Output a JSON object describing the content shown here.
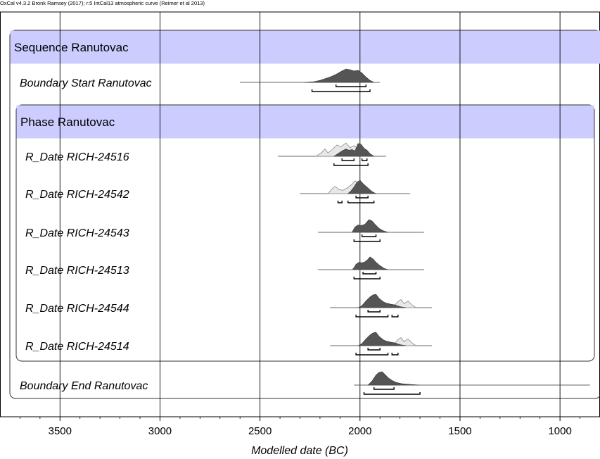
{
  "header": "OxCal v4.3.2 Bronk Ramsey (2017); r:5 IntCal13 atmospheric curve (Reimer et al 2013)",
  "chart_data": {
    "type": "area",
    "title": "",
    "xlabel": "Modelled date (BC)",
    "ylabel": "",
    "xlim": [
      3800,
      800
    ],
    "x_reversed": true,
    "xticks": [
      3500,
      3000,
      2500,
      2000,
      1500,
      1000
    ],
    "grid": true,
    "sequence": {
      "label": "Sequence Ranutovac"
    },
    "phase": {
      "label": "Phase Ranutovac"
    },
    "rows": [
      {
        "label": "Boundary Start Ranutovac",
        "group": "sequence",
        "posterior": [
          [
            2280,
            0
          ],
          [
            2230,
            0.05
          ],
          [
            2200,
            0.15
          ],
          [
            2150,
            0.4
          ],
          [
            2120,
            0.6
          ],
          [
            2090,
            0.85
          ],
          [
            2070,
            1
          ],
          [
            2050,
            0.95
          ],
          [
            2030,
            0.85
          ],
          [
            2010,
            0.9
          ],
          [
            1990,
            0.7
          ],
          [
            1970,
            0.4
          ],
          [
            1950,
            0.15
          ],
          [
            1930,
            0
          ]
        ],
        "tail": [
          2600,
          1900
        ],
        "range_68": [
          [
            2120,
            1970
          ]
        ],
        "range_95": [
          [
            2240,
            1950
          ]
        ]
      },
      {
        "label": "R_Date RICH-24516",
        "group": "phase",
        "prior": [
          [
            2220,
            0
          ],
          [
            2190,
            0.3
          ],
          [
            2175,
            0.55
          ],
          [
            2160,
            0.25
          ],
          [
            2140,
            0.5
          ],
          [
            2115,
            0.85
          ],
          [
            2095,
            0.7
          ],
          [
            2070,
            1
          ],
          [
            2050,
            0.65
          ],
          [
            2030,
            0.8
          ],
          [
            2010,
            0.55
          ],
          [
            1995,
            0.8
          ],
          [
            1980,
            0.45
          ],
          [
            1960,
            0.3
          ],
          [
            1940,
            0
          ]
        ],
        "posterior": [
          [
            2130,
            0
          ],
          [
            2110,
            0.2
          ],
          [
            2090,
            0.4
          ],
          [
            2070,
            0.55
          ],
          [
            2055,
            0.45
          ],
          [
            2040,
            0.5
          ],
          [
            2025,
            0.4
          ],
          [
            2010,
            0.95
          ],
          [
            1995,
            0.9
          ],
          [
            1980,
            0.6
          ],
          [
            1965,
            0.45
          ],
          [
            1950,
            0.2
          ],
          [
            1930,
            0
          ]
        ],
        "tail": [
          2410,
          1870
        ],
        "range_68": [
          [
            2090,
            2030
          ],
          [
            1990,
            1965
          ]
        ],
        "range_95": [
          [
            2130,
            1960
          ]
        ]
      },
      {
        "label": "R_Date RICH-24542",
        "group": "phase",
        "prior": [
          [
            2160,
            0
          ],
          [
            2140,
            0.35
          ],
          [
            2125,
            0.55
          ],
          [
            2105,
            0.3
          ],
          [
            2085,
            0.25
          ],
          [
            2060,
            0.45
          ],
          [
            2040,
            0.7
          ],
          [
            2025,
            0.95
          ],
          [
            2005,
            0.8
          ],
          [
            1985,
            0.55
          ],
          [
            1965,
            0.4
          ],
          [
            1945,
            0.2
          ],
          [
            1925,
            0
          ]
        ],
        "posterior": [
          [
            2060,
            0
          ],
          [
            2045,
            0.2
          ],
          [
            2030,
            0.5
          ],
          [
            2015,
            0.85
          ],
          [
            2000,
            1
          ],
          [
            1985,
            0.75
          ],
          [
            1970,
            0.55
          ],
          [
            1955,
            0.35
          ],
          [
            1940,
            0.15
          ],
          [
            1920,
            0
          ]
        ],
        "tail": [
          2300,
          1750
        ],
        "range_68": [
          [
            2020,
            1960
          ]
        ],
        "range_95": [
          [
            2110,
            2090
          ],
          [
            2060,
            1930
          ]
        ]
      },
      {
        "label": "R_Date RICH-24543",
        "group": "phase",
        "prior": [
          [
            2040,
            0
          ],
          [
            2020,
            0.3
          ],
          [
            2000,
            0.5
          ],
          [
            1980,
            0.55
          ],
          [
            1960,
            0.75
          ],
          [
            1945,
            0.85
          ],
          [
            1930,
            0.6
          ],
          [
            1915,
            0.35
          ],
          [
            1895,
            0.15
          ],
          [
            1870,
            0
          ]
        ],
        "posterior": [
          [
            2040,
            0
          ],
          [
            2025,
            0.4
          ],
          [
            2010,
            0.55
          ],
          [
            1995,
            0.5
          ],
          [
            1975,
            0.6
          ],
          [
            1955,
            0.95
          ],
          [
            1940,
            0.85
          ],
          [
            1925,
            0.6
          ],
          [
            1905,
            0.3
          ],
          [
            1885,
            0.12
          ],
          [
            1860,
            0
          ]
        ],
        "tail": [
          2210,
          1680
        ],
        "range_68": [
          [
            1990,
            1920
          ]
        ],
        "range_95": [
          [
            2030,
            1900
          ]
        ]
      },
      {
        "label": "R_Date RICH-24513",
        "group": "phase",
        "prior": [
          [
            2040,
            0
          ],
          [
            2020,
            0.3
          ],
          [
            2000,
            0.5
          ],
          [
            1980,
            0.55
          ],
          [
            1960,
            0.75
          ],
          [
            1945,
            0.85
          ],
          [
            1930,
            0.6
          ],
          [
            1915,
            0.35
          ],
          [
            1895,
            0.15
          ],
          [
            1870,
            0
          ]
        ],
        "posterior": [
          [
            2035,
            0
          ],
          [
            2020,
            0.4
          ],
          [
            2005,
            0.55
          ],
          [
            1990,
            0.5
          ],
          [
            1970,
            0.6
          ],
          [
            1950,
            0.95
          ],
          [
            1935,
            0.8
          ],
          [
            1920,
            0.55
          ],
          [
            1900,
            0.3
          ],
          [
            1880,
            0.1
          ],
          [
            1860,
            0
          ]
        ],
        "tail": [
          2210,
          1680
        ],
        "range_68": [
          [
            1985,
            1920
          ]
        ],
        "range_95": [
          [
            2030,
            1900
          ]
        ]
      },
      {
        "label": "R_Date RICH-24544",
        "group": "phase",
        "prior": [
          [
            1990,
            0
          ],
          [
            1965,
            0.3
          ],
          [
            1945,
            0.5
          ],
          [
            1925,
            0.55
          ],
          [
            1905,
            0.45
          ],
          [
            1885,
            0.3
          ],
          [
            1865,
            0.35
          ],
          [
            1845,
            0.25
          ],
          [
            1825,
            0.2
          ],
          [
            1810,
            0.45
          ],
          [
            1795,
            0.6
          ],
          [
            1780,
            0.3
          ],
          [
            1760,
            0.5
          ],
          [
            1740,
            0.2
          ],
          [
            1720,
            0
          ]
        ],
        "posterior": [
          [
            2010,
            0
          ],
          [
            1990,
            0.15
          ],
          [
            1970,
            0.5
          ],
          [
            1950,
            0.8
          ],
          [
            1935,
            0.95
          ],
          [
            1920,
            1
          ],
          [
            1905,
            0.7
          ],
          [
            1885,
            0.45
          ],
          [
            1865,
            0.3
          ],
          [
            1845,
            0.25
          ],
          [
            1825,
            0.2
          ],
          [
            1800,
            0.08
          ],
          [
            1770,
            0
          ]
        ],
        "tail": [
          2150,
          1640
        ],
        "range_68": [
          [
            1960,
            1900
          ]
        ],
        "range_95": [
          [
            2020,
            1860
          ],
          [
            1840,
            1810
          ]
        ]
      },
      {
        "label": "R_Date RICH-24514",
        "group": "phase",
        "prior": [
          [
            1990,
            0
          ],
          [
            1965,
            0.3
          ],
          [
            1945,
            0.5
          ],
          [
            1925,
            0.55
          ],
          [
            1905,
            0.45
          ],
          [
            1885,
            0.3
          ],
          [
            1865,
            0.35
          ],
          [
            1845,
            0.25
          ],
          [
            1825,
            0.2
          ],
          [
            1810,
            0.45
          ],
          [
            1795,
            0.6
          ],
          [
            1780,
            0.3
          ],
          [
            1760,
            0.5
          ],
          [
            1740,
            0.2
          ],
          [
            1720,
            0
          ]
        ],
        "posterior": [
          [
            2010,
            0
          ],
          [
            1990,
            0.15
          ],
          [
            1970,
            0.5
          ],
          [
            1950,
            0.8
          ],
          [
            1935,
            0.95
          ],
          [
            1920,
            1
          ],
          [
            1905,
            0.7
          ],
          [
            1885,
            0.45
          ],
          [
            1865,
            0.3
          ],
          [
            1845,
            0.25
          ],
          [
            1825,
            0.2
          ],
          [
            1800,
            0.08
          ],
          [
            1770,
            0
          ]
        ],
        "tail": [
          2150,
          1640
        ],
        "range_68": [
          [
            1960,
            1900
          ]
        ],
        "range_95": [
          [
            2020,
            1860
          ],
          [
            1840,
            1810
          ]
        ]
      },
      {
        "label": "Boundary End Ranutovac",
        "group": "sequence",
        "posterior": [
          [
            1960,
            0
          ],
          [
            1940,
            0.3
          ],
          [
            1920,
            0.75
          ],
          [
            1905,
            0.95
          ],
          [
            1890,
            1
          ],
          [
            1875,
            0.8
          ],
          [
            1860,
            0.55
          ],
          [
            1840,
            0.35
          ],
          [
            1820,
            0.2
          ],
          [
            1790,
            0.1
          ],
          [
            1750,
            0.05
          ],
          [
            1700,
            0
          ]
        ],
        "tail": [
          2030,
          850
        ],
        "range_68": [
          [
            1930,
            1830
          ]
        ],
        "range_95": [
          [
            1980,
            1700
          ]
        ]
      }
    ]
  }
}
